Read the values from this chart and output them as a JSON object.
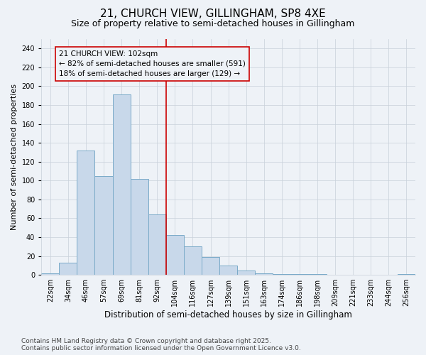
{
  "title": "21, CHURCH VIEW, GILLINGHAM, SP8 4XE",
  "subtitle": "Size of property relative to semi-detached houses in Gillingham",
  "xlabel": "Distribution of semi-detached houses by size in Gillingham",
  "ylabel": "Number of semi-detached properties",
  "categories": [
    "22sqm",
    "34sqm",
    "46sqm",
    "57sqm",
    "69sqm",
    "81sqm",
    "92sqm",
    "104sqm",
    "116sqm",
    "127sqm",
    "139sqm",
    "151sqm",
    "163sqm",
    "174sqm",
    "186sqm",
    "198sqm",
    "209sqm",
    "221sqm",
    "233sqm",
    "244sqm",
    "256sqm"
  ],
  "values": [
    2,
    13,
    132,
    105,
    191,
    102,
    64,
    42,
    30,
    19,
    10,
    5,
    2,
    1,
    1,
    1,
    0,
    0,
    0,
    0,
    1
  ],
  "bar_color": "#c8d8ea",
  "bar_edge_color": "#7aaac8",
  "annotation_text": "21 CHURCH VIEW: 102sqm\n← 82% of semi-detached houses are smaller (591)\n18% of semi-detached houses are larger (129) →",
  "vline_x_index": 7,
  "vline_color": "#cc0000",
  "annotation_box_color": "#cc0000",
  "ylim": [
    0,
    250
  ],
  "yticks": [
    0,
    20,
    40,
    60,
    80,
    100,
    120,
    140,
    160,
    180,
    200,
    220,
    240
  ],
  "footer_line1": "Contains HM Land Registry data © Crown copyright and database right 2025.",
  "footer_line2": "Contains public sector information licensed under the Open Government Licence v3.0.",
  "bg_color": "#eef2f7",
  "grid_color": "#c8d0da",
  "title_fontsize": 11,
  "subtitle_fontsize": 9,
  "tick_fontsize": 7,
  "ylabel_fontsize": 8,
  "xlabel_fontsize": 8.5,
  "footer_fontsize": 6.5,
  "annotation_fontsize": 7.5
}
